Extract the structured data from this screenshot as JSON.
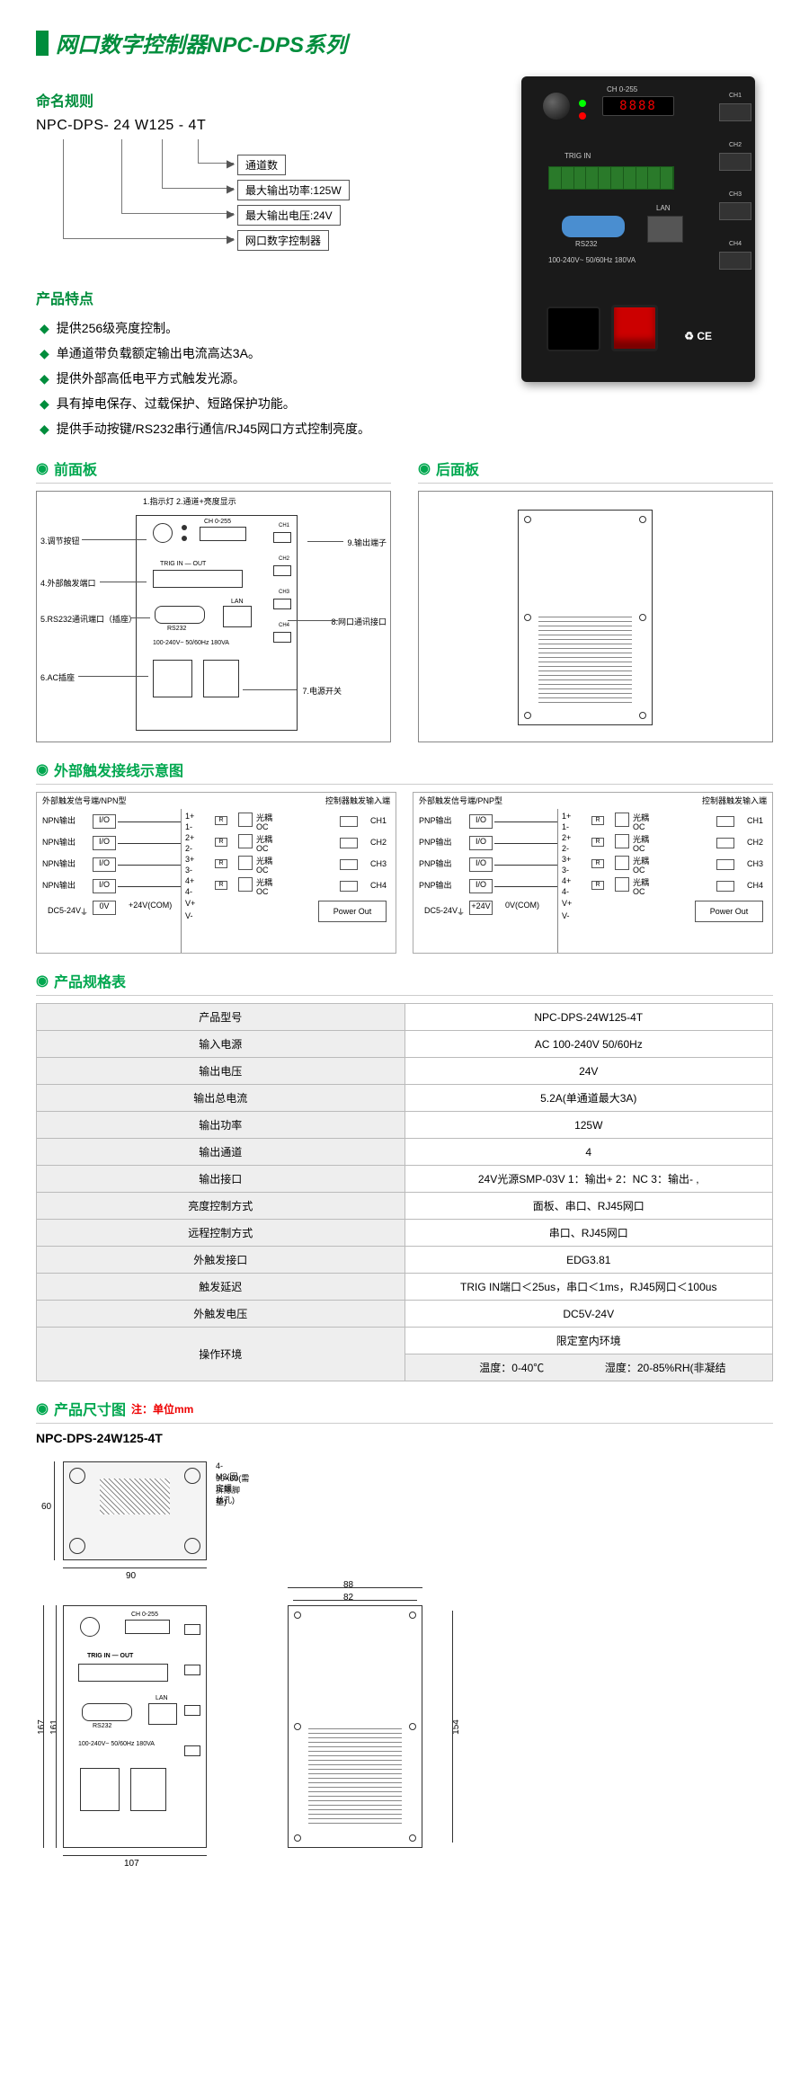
{
  "title_cn": "网口数字控制器",
  "title_en": "NPC-DPS系列",
  "naming": {
    "heading": "命名规则",
    "code": "NPC-DPS- 24  W125  - 4T",
    "labels": [
      "通道数",
      "最大输出功率:125W",
      "最大输出电压:24V",
      "网口数字控制器"
    ]
  },
  "photo": {
    "display_label": "CH  0-255",
    "display": "8888",
    "trigin": "TRIG IN",
    "rs232": "RS232",
    "lan": "LAN",
    "ac_info": "100-240V~  50/60Hz  180VA",
    "cert": "♻ CE",
    "ch": [
      "CH1",
      "CH2",
      "CH3",
      "CH4"
    ]
  },
  "features": {
    "heading": "产品特点",
    "items": [
      "提供256级亮度控制。",
      "单通道带负载额定输出电流高达3A。",
      "提供外部高低电平方式触发光源。",
      "具有掉电保存、过载保护、短路保护功能。",
      "提供手动按键/RS232串行通信/RJ45网口方式控制亮度。"
    ]
  },
  "front_panel": {
    "heading": "前面板",
    "callouts": {
      "c1": "1.指示灯  2.通道+亮度显示",
      "c3": "3.调节按钮",
      "c4": "4.外部触发端口",
      "c5": "5.RS232通讯端口（插座）",
      "c6": "6.AC插座",
      "c7": "7.电源开关",
      "c8": "8.网口通讯接口",
      "c9": "9.输出端子",
      "display_label": "CH 0-255",
      "trig": "TRIG IN — OUT",
      "rs232": "RS232",
      "lan": "LAN",
      "ac": "100-240V~  50/60Hz 180VA"
    }
  },
  "back_panel": {
    "heading": "后面板"
  },
  "wiring": {
    "heading": "外部触发接线示意图",
    "left_title": "外部触发信号端/NPN型",
    "right_title": "外部触发信号端/PNP型",
    "ctrl_title": "控制器触发输入端",
    "row_labels": [
      "NPN输出",
      "NPN输出",
      "NPN输出",
      "NPN输出"
    ],
    "row_labels_r": [
      "PNP输出",
      "PNP输出",
      "PNP输出",
      "PNP输出"
    ],
    "io": "I/O",
    "nums": [
      "1+",
      "1-",
      "2+",
      "2-",
      "3+",
      "3-",
      "4+",
      "4-"
    ],
    "ov": "0V",
    "vcom_l": "+24V(COM)",
    "vcom_r": "0V(COM)",
    "v24": "+24V",
    "dc": "DC5-24V",
    "opto": "光耦",
    "oc": "OC",
    "r": "R",
    "ch": [
      "CH1",
      "CH2",
      "CH3",
      "CH4"
    ],
    "vplus": "V+",
    "vminus": "V-",
    "pout": "Power Out"
  },
  "spec": {
    "heading": "产品规格表",
    "rows": [
      [
        "产品型号",
        "NPC-DPS-24W125-4T"
      ],
      [
        "输入电源",
        "AC 100-240V 50/60Hz"
      ],
      [
        "输出电压",
        "24V"
      ],
      [
        "输出总电流",
        "5.2A(单通道最大3A)"
      ],
      [
        "输出功率",
        "125W"
      ],
      [
        "输出通道",
        "4"
      ],
      [
        "输出接口",
        "24V光源SMP-03V 1：输出+  2：NC 3：输出- ,"
      ],
      [
        "亮度控制方式",
        "面板、串口、RJ45网口"
      ],
      [
        "远程控制方式",
        "串口、RJ45网口"
      ],
      [
        "外触发接口",
        "EDG3.81"
      ],
      [
        "触发延迟",
        "TRIG IN端口＜25us，串口＜1ms，RJ45网口＜100us"
      ],
      [
        "外触发电压",
        "DC5V-24V"
      ]
    ],
    "env_label": "操作环境",
    "env_top": "限定室内环境",
    "env_temp": "温度：0-40℃",
    "env_hum": "湿度：20-85%RH(非凝结"
  },
  "dim": {
    "heading": "产品尺寸图",
    "note": "注：单位mm",
    "subtitle": "NPC-DPS-24W125-4T",
    "top_w": "90",
    "top_h": "60",
    "screw": "4-M3(固定螺丝孔)",
    "screw2": "90×60(需拆除脚垫)",
    "front_h": "161",
    "front_h2": "167",
    "front_w": "107",
    "back_w": "88",
    "back_w2": "82",
    "back_h": "154"
  }
}
